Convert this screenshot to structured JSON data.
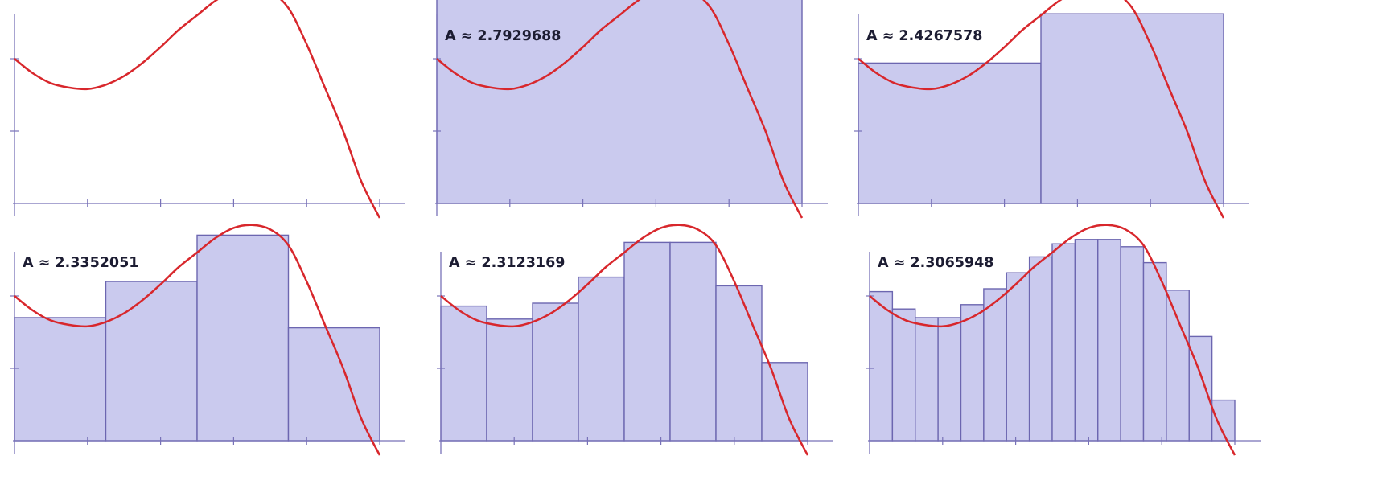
{
  "colors": {
    "curve": "#d8272c",
    "rectangle_fill": "#cacaee",
    "rectangle_stroke": "#6c66b0",
    "axis": "#7872b8"
  },
  "chart_data": [
    {
      "type": "line",
      "title": "",
      "function": "f(x) = 1 + 2x - 3x^2 + x^3 - 0.125x^4 (interpolated from curve)",
      "x": [
        0,
        0.25,
        0.5,
        0.75,
        1,
        1.25,
        1.5,
        1.75,
        2,
        2.25,
        2.5,
        2.75,
        3,
        3.25,
        3.5,
        3.75,
        4,
        4.25,
        4.5,
        4.75,
        5
      ],
      "y": [
        1.0,
        0.9,
        0.83,
        0.8,
        0.79,
        0.82,
        0.88,
        0.97,
        1.08,
        1.2,
        1.3,
        1.4,
        1.47,
        1.49,
        1.46,
        1.35,
        1.1,
        0.8,
        0.5,
        0.15,
        -0.1
      ],
      "xlim": [
        0,
        5
      ],
      "ylim": [
        0,
        2
      ],
      "x_ticks": [
        1,
        2,
        3,
        4,
        5
      ],
      "y_ticks": [
        1,
        2
      ],
      "rectangles": 0,
      "area_label": ""
    },
    {
      "type": "bar",
      "title": "",
      "xlim": [
        0,
        5
      ],
      "ylim": [
        0,
        2
      ],
      "rectangles": 1,
      "bar_heights": [
        1.44
      ],
      "area_label": "A ≈ 2.7929688"
    },
    {
      "type": "bar",
      "title": "",
      "xlim": [
        0,
        5
      ],
      "ylim": [
        0,
        2
      ],
      "rectangles": 2,
      "bar_heights": [
        0.97,
        1.31
      ],
      "area_label": "A ≈ 2.4267578"
    },
    {
      "type": "bar",
      "title": "",
      "xlim": [
        0,
        5
      ],
      "ylim": [
        0,
        2
      ],
      "rectangles": 4,
      "bar_heights": [
        0.85,
        1.1,
        1.42,
        0.78
      ],
      "area_label": "A ≈ 2.3352051"
    },
    {
      "type": "bar",
      "title": "",
      "xlim": [
        0,
        5
      ],
      "ylim": [
        0,
        2
      ],
      "rectangles": 8,
      "bar_heights": [
        0.93,
        0.84,
        0.95,
        1.13,
        1.37,
        1.37,
        1.07,
        0.54
      ],
      "area_label": "A ≈ 2.3123169"
    },
    {
      "type": "bar",
      "title": "",
      "xlim": [
        0,
        5
      ],
      "ylim": [
        0,
        2
      ],
      "rectangles": 16,
      "bar_heights": [
        1.03,
        0.91,
        0.85,
        0.85,
        0.94,
        1.05,
        1.16,
        1.27,
        1.36,
        1.39,
        1.39,
        1.34,
        1.23,
        1.04,
        0.72,
        0.28
      ],
      "area_label": "A ≈ 2.3065948"
    }
  ]
}
